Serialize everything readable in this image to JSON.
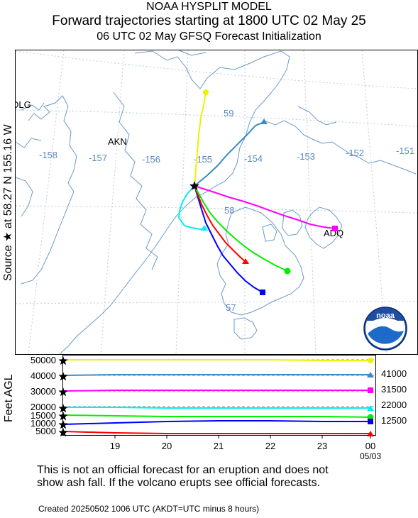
{
  "header": {
    "title": "NOAA HYSPLIT MODEL",
    "subtitle": "Forward trajectories starting at 1800 UTC 02 May 25",
    "run_info": "06 UTC 02 May    GFSQ  Forecast Initialization"
  },
  "source_label": "Source ★  at   58.27 N  155.16 W",
  "map": {
    "places": [
      "DLG",
      "AKN",
      "ADQ"
    ],
    "lon_labels": [
      "-158",
      "-157",
      "-156",
      "-155",
      "-154",
      "-153",
      "-152",
      "-151"
    ],
    "lat_labels": [
      "59",
      "58",
      "57"
    ],
    "logo_text": "noaa"
  },
  "profile": {
    "y_title": "Feet AGL",
    "left_ticks": [
      "50000",
      "40000",
      "30000",
      "20000",
      "15000",
      "10000",
      "5000"
    ],
    "right_labels": [
      "41000",
      "31500",
      "22000",
      "12500"
    ],
    "x_ticks": [
      "19",
      "20",
      "21",
      "22",
      "23",
      "00"
    ],
    "x_date": "05/03"
  },
  "footer": {
    "line1": "This is not an official forecast for an eruption and does not",
    "line2": "show ash fall. If the volcano erupts see official forecasts.",
    "created": "Created 20250502 1006 UTC        (AKDT=UTC minus 8 hours)"
  },
  "colors": {
    "yellow": "#f0f000",
    "steelblue": "#3a8cc8",
    "magenta": "#ff00ff",
    "cyan": "#00f0f0",
    "green": "#00f000",
    "blue": "#0000ff",
    "red": "#ff0000",
    "coast": "#6a9ac8",
    "grid": "#b8cce0",
    "label": "#5a88c0"
  }
}
